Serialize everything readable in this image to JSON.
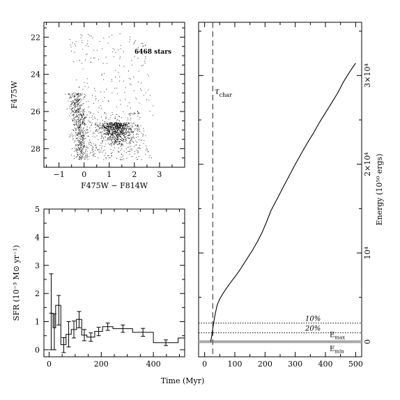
{
  "chart_data": [
    {
      "type": "scatter",
      "panel": "cmd",
      "xlabel": "F475W − F814W",
      "ylabel": "F475W",
      "xlim": [
        -1.6,
        4.0
      ],
      "ylim": [
        29.0,
        21.2
      ],
      "y_inverted": true,
      "xticks": [
        -1,
        0,
        1,
        2,
        3
      ],
      "yticks": [
        22,
        24,
        26,
        28
      ],
      "annotation": "6468 stars",
      "n_points_drawn": 6468
    },
    {
      "type": "bar",
      "style": "step-with-errorbars",
      "panel": "sfr",
      "xlabel": "Time (Myr)",
      "ylabel": "SFR (10⁻³ M⊙ yr⁻¹)",
      "xlim": [
        -20,
        520
      ],
      "ylim": [
        -0.25,
        5.0
      ],
      "xticks": [
        0,
        200,
        400
      ],
      "yticks": [
        0,
        1,
        2,
        3,
        4,
        5
      ],
      "bins": [
        {
          "lo": 0,
          "hi": 15,
          "value": 1.3,
          "err_lo": 1.3,
          "err_hi": 1.4,
          "mid": 8
        },
        {
          "lo": 15,
          "hi": 25,
          "value": 0.78,
          "err_lo": 0.78,
          "err_hi": 0.5,
          "mid": 20
        },
        {
          "lo": 25,
          "hi": 45,
          "value": 1.58,
          "err_lo": 0.7,
          "err_hi": 0.35,
          "mid": 37
        },
        {
          "lo": 45,
          "hi": 65,
          "value": 0.18,
          "err_lo": 0.28,
          "err_hi": 0.25,
          "mid": 56
        },
        {
          "lo": 65,
          "hi": 85,
          "value": 0.55,
          "err_lo": 0.45,
          "err_hi": 0.45,
          "mid": 75
        },
        {
          "lo": 85,
          "hi": 105,
          "value": 0.72,
          "err_lo": 0.3,
          "err_hi": 0.3,
          "mid": 95
        },
        {
          "lo": 105,
          "hi": 125,
          "value": 1.08,
          "err_lo": 0.3,
          "err_hi": 0.28,
          "mid": 115
        },
        {
          "lo": 125,
          "hi": 145,
          "value": 0.52,
          "err_lo": 0.2,
          "err_hi": 0.2,
          "mid": 135
        },
        {
          "lo": 145,
          "hi": 175,
          "value": 0.45,
          "err_lo": 0.15,
          "err_hi": 0.15,
          "mid": 160
        },
        {
          "lo": 175,
          "hi": 205,
          "value": 0.65,
          "err_lo": 0.15,
          "err_hi": 0.15,
          "mid": 190
        },
        {
          "lo": 205,
          "hi": 245,
          "value": 0.82,
          "err_lo": 0.13,
          "err_hi": 0.13,
          "mid": 225
        },
        {
          "lo": 245,
          "hi": 320,
          "value": 0.75,
          "err_lo": 0.13,
          "err_hi": 0.13,
          "mid": 283
        },
        {
          "lo": 320,
          "hi": 400,
          "value": 0.62,
          "err_lo": 0.14,
          "err_hi": 0.14,
          "mid": 360
        },
        {
          "lo": 400,
          "hi": 495,
          "value": 0.25,
          "err_lo": 0.1,
          "err_hi": 0.1,
          "mid": 448
        },
        {
          "lo": 495,
          "hi": 520,
          "value": 0.42,
          "err_lo": 0.0,
          "err_hi": 0.0,
          "mid": 508
        }
      ]
    },
    {
      "type": "line",
      "panel": "energy",
      "xlabel": "Time (Myr)",
      "ylabel": "Energy (10⁵⁰ ergs)",
      "xlim": [
        -20,
        520
      ],
      "ylim": [
        -1700,
        36000
      ],
      "xticks": [
        0,
        100,
        200,
        300,
        400,
        500
      ],
      "yticks_right": [
        {
          "value": 0,
          "label": "0"
        },
        {
          "value": 10000,
          "label": "10⁴"
        },
        {
          "value": 20000,
          "label": "2×10⁴"
        },
        {
          "value": 30000,
          "label": "3×10⁴"
        }
      ],
      "series": [
        {
          "x": [
            20,
            23,
            27,
            31,
            36,
            42,
            50,
            60,
            70,
            80,
            90,
            100,
            115,
            130,
            145,
            160,
            175,
            190,
            205,
            220,
            240,
            260,
            280,
            300,
            320,
            340,
            360,
            380,
            400,
            420,
            440,
            460,
            480,
            500
          ],
          "y": [
            0,
            550,
            1500,
            2400,
            3300,
            4200,
            4800,
            5400,
            5900,
            6400,
            6850,
            7300,
            8000,
            8800,
            9600,
            10400,
            11300,
            12300,
            13500,
            14800,
            16100,
            17400,
            18700,
            20000,
            21200,
            22400,
            23500,
            24700,
            25800,
            26900,
            28000,
            29300,
            30400,
            31400
          ]
        }
      ],
      "tau_char": 27,
      "tau_label": "τ",
      "tau_label_sub": "char",
      "hlines": [
        {
          "value": 2100,
          "label": "10%",
          "style": "dotted"
        },
        {
          "value": 1000,
          "label": "20%",
          "style": "dotted"
        },
        {
          "value": 0,
          "label": "E",
          "label_sub": "max",
          "style": "solid-gray"
        }
      ],
      "emin_label": "E",
      "emin_sub": "min"
    }
  ]
}
